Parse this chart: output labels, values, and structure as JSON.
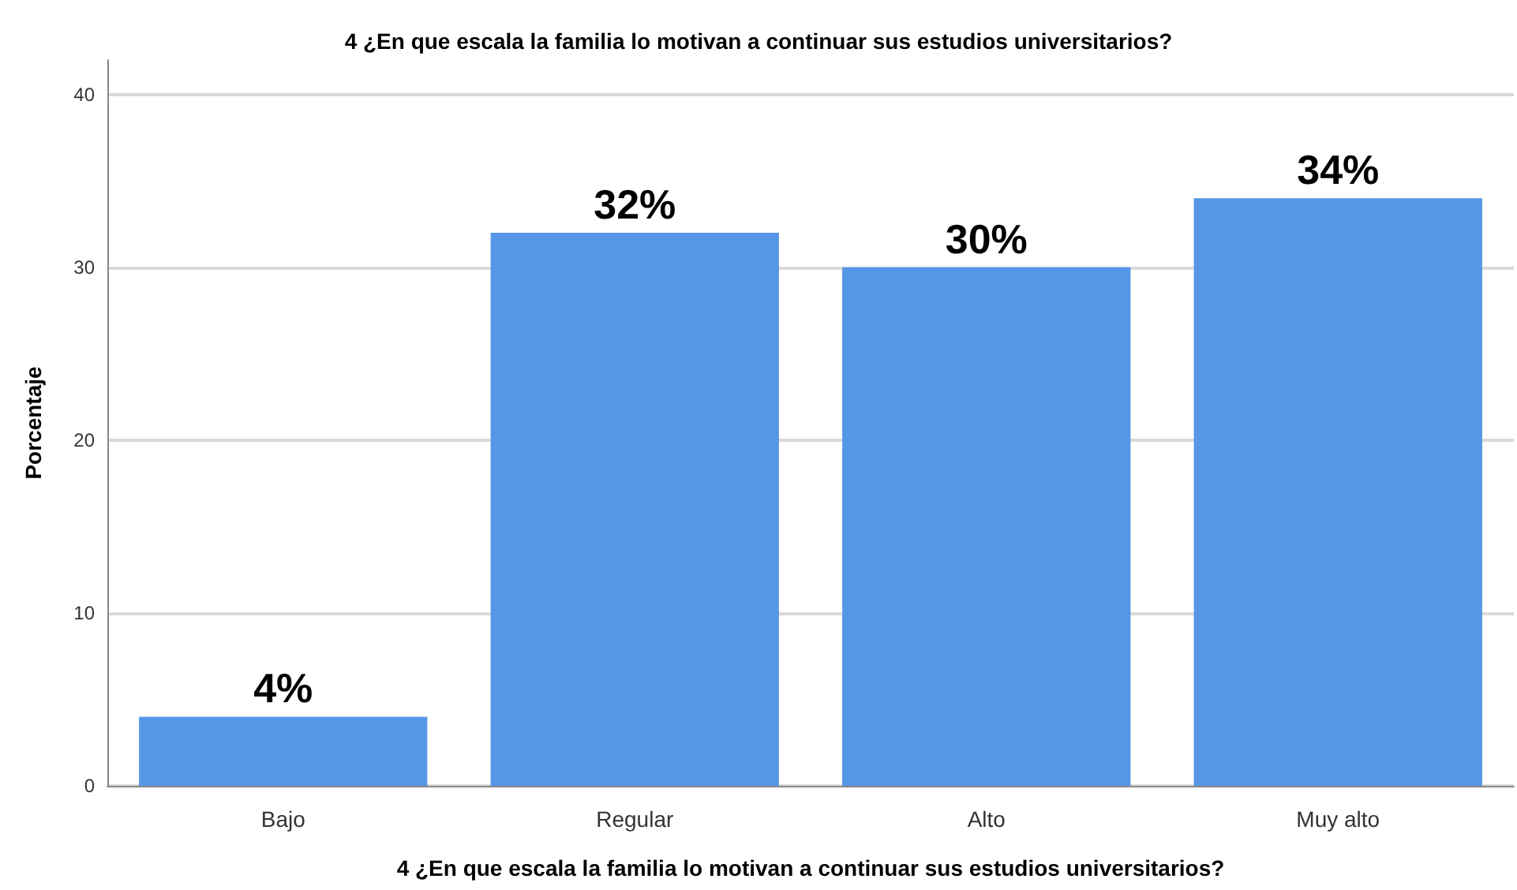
{
  "chart_data": {
    "type": "bar",
    "title": "4 ¿En que escala la familia lo motivan a continuar sus estudios universitarios?",
    "xlabel": "4 ¿En que escala la familia lo motivan a continuar sus estudios universitarios?",
    "ylabel": "Porcentaje",
    "categories": [
      "Bajo",
      "Regular",
      "Alto",
      "Muy alto"
    ],
    "values": [
      4,
      32,
      30,
      34
    ],
    "value_labels": [
      "4%",
      "32%",
      "30%",
      "34%"
    ],
    "color": "#5596e6",
    "ylim": [
      0,
      42
    ],
    "yticks": [
      0,
      10,
      20,
      30,
      40
    ],
    "grid": "y"
  }
}
